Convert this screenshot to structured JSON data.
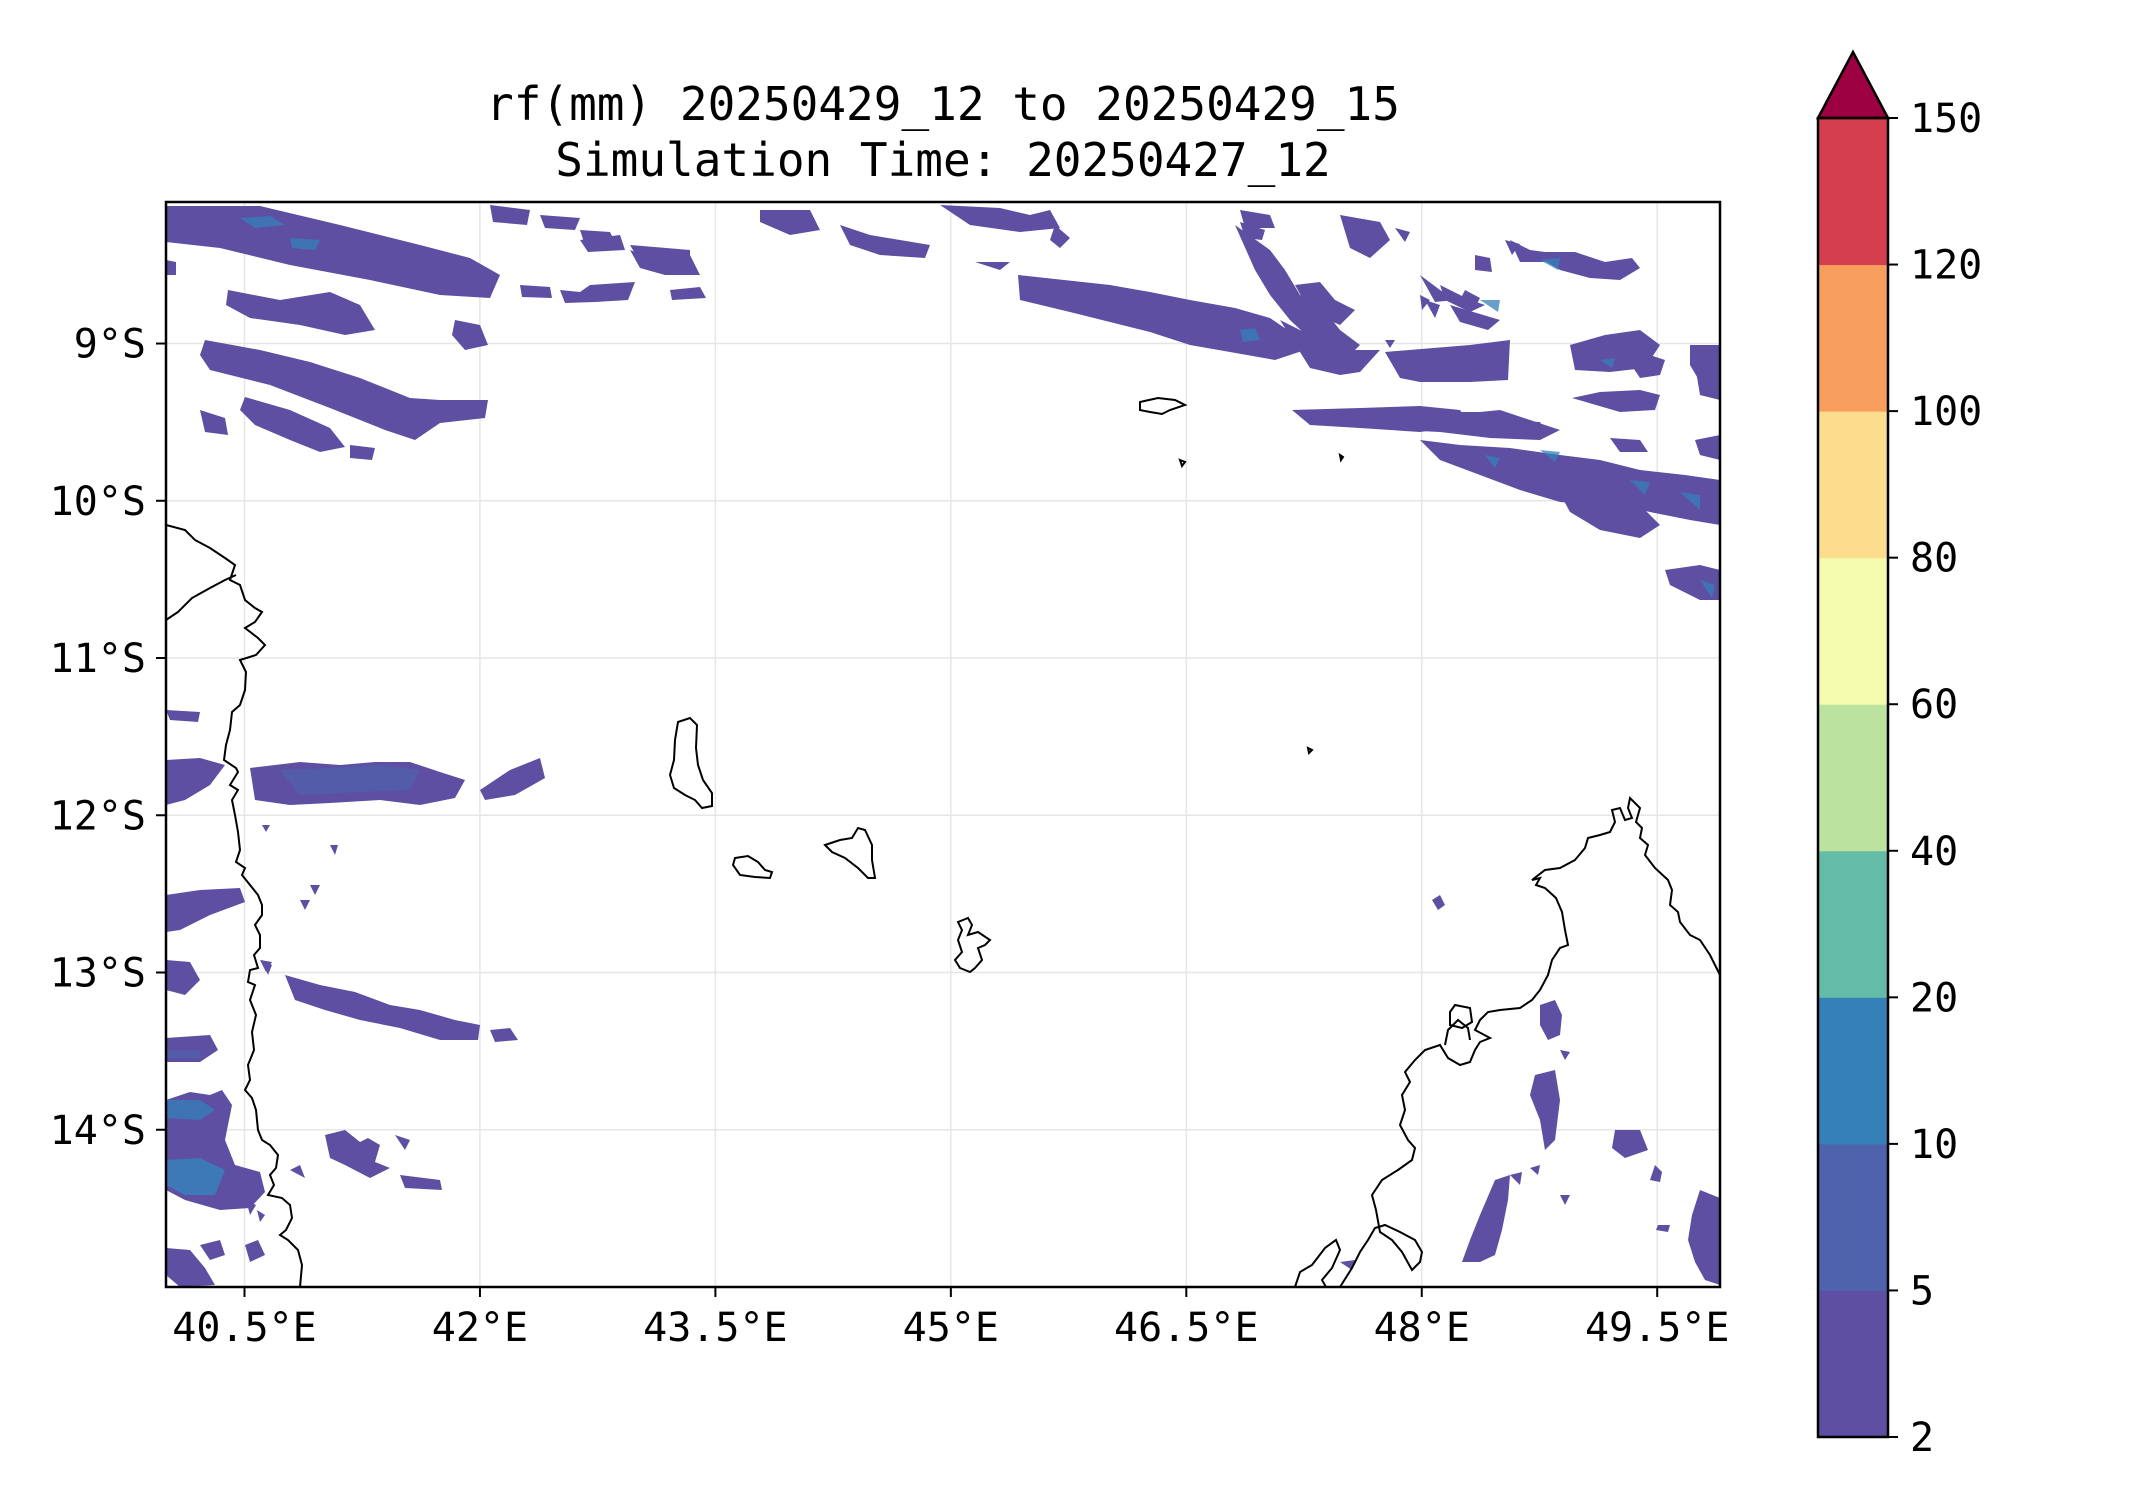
{
  "title": {
    "line1": "rf(mm) 20250429_12 to 20250429_15",
    "line2": "Simulation Time: 20250427_12"
  },
  "map": {
    "lon_range": [
      40.0,
      49.9
    ],
    "lat_range": [
      -15.0,
      -8.1
    ],
    "x_ticks": [
      "40.5°E",
      "42°E",
      "43.5°E",
      "45°E",
      "46.5°E",
      "48°E",
      "49.5°E"
    ],
    "x_tick_values": [
      40.5,
      42.0,
      43.5,
      45.0,
      46.5,
      48.0,
      49.5
    ],
    "y_ticks": [
      "9°S",
      "10°S",
      "11°S",
      "12°S",
      "13°S",
      "14°S"
    ],
    "y_tick_values": [
      -9,
      -10,
      -11,
      -12,
      -13,
      -14
    ],
    "gridlines": true,
    "coastline_color": "#000000"
  },
  "colorbar": {
    "levels": [
      "2",
      "5",
      "10",
      "20",
      "40",
      "60",
      "80",
      "100",
      "120",
      "150"
    ],
    "colors": [
      "#5e4fa2",
      "#4f63ad",
      "#3680ba",
      "#64bba8",
      "#bbe29f",
      "#f3fbac",
      "#fcdd8e",
      "#f89e5c",
      "#d53e4f",
      "#9e0142"
    ],
    "extend": "max"
  },
  "rain_bands_note_colors": {
    "light": "#5e4fa2",
    "medium": "#4f63ad",
    "heavy": "#3680ba"
  }
}
